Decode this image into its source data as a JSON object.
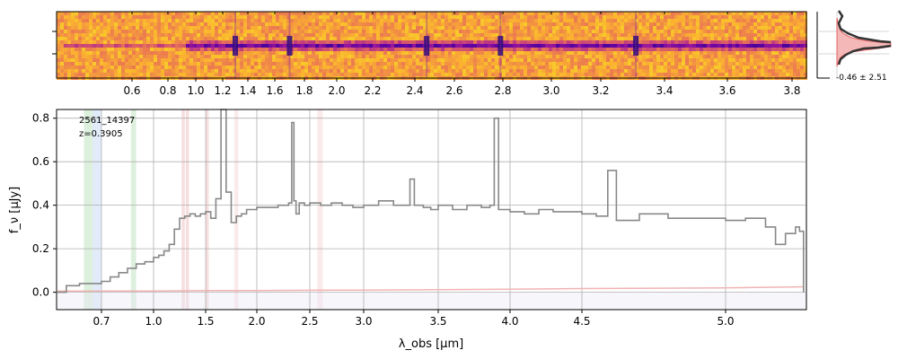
{
  "figure": {
    "label_object": "2561_14397",
    "label_redshift": "z=0.3905",
    "colors": {
      "spectrum": "#888888",
      "error": "#f2b3b3",
      "grid": "#b0b0b0",
      "colormap_low": "#0d0887",
      "colormap_high": "#f0f921"
    }
  },
  "chart_data": [
    {
      "type": "heatmap",
      "description_role": "2D spectrum",
      "x_axis_top_ticks_um": [
        "0.6",
        "0.8",
        "1.0",
        "1.2",
        "1.4",
        "1.6",
        "1.8",
        "2.0",
        "2.2",
        "2.4",
        "2.6",
        "2.8",
        "3.0",
        "3.2",
        "3.4",
        "3.6",
        "3.8"
      ],
      "colormap": "plasma",
      "trace_features_um": [
        1.3,
        1.7,
        2.46,
        2.79,
        3.31
      ]
    },
    {
      "type": "line",
      "description_role": "cross-dispersion profile",
      "annotation": "-0.46 ± 2.51",
      "grid": true
    },
    {
      "type": "line",
      "description_role": "1D spectrum",
      "xlabel": "λ_obs [μm]",
      "ylabel": "f_ν [μJy]",
      "xscale": "nonlinear (resolution-weighted)",
      "xlim": [
        0.6,
        5.4
      ],
      "ylim": [
        -0.08,
        0.84
      ],
      "grid": true,
      "x_ticks": [
        "0.7",
        "1.0",
        "1.5",
        "2.0",
        "2.5",
        "3.0",
        "3.5",
        "4.0",
        "4.5",
        "5.0"
      ],
      "y_ticks": [
        "0.0",
        "0.2",
        "0.4",
        "0.6",
        "0.8"
      ],
      "series": [
        {
          "name": "",
          "x": [
            0.6,
            0.62,
            0.65,
            0.7,
            0.75,
            0.8,
            0.85,
            0.9,
            0.95,
            1.0,
            1.05,
            1.1,
            1.15,
            1.2,
            1.25,
            1.3,
            1.35,
            1.4,
            1.45,
            1.5,
            1.55,
            1.6,
            1.65,
            1.7,
            1.75,
            1.8,
            1.85,
            1.9,
            2.0,
            2.1,
            2.2,
            2.3,
            2.33,
            2.35,
            2.37,
            2.4,
            2.45,
            2.5,
            2.6,
            2.7,
            2.8,
            2.9,
            3.0,
            3.1,
            3.2,
            3.28,
            3.31,
            3.34,
            3.4,
            3.45,
            3.5,
            3.6,
            3.7,
            3.8,
            3.86,
            3.89,
            3.92,
            4.0,
            4.1,
            4.2,
            4.3,
            4.4,
            4.5,
            4.55,
            4.59,
            4.62,
            4.7,
            4.8,
            4.9,
            5.0,
            5.1,
            5.2,
            5.25,
            5.3,
            5.35,
            5.37,
            5.39
          ],
          "y": [
            0.0,
            0.03,
            0.04,
            0.05,
            0.07,
            0.09,
            0.11,
            0.13,
            0.14,
            0.16,
            0.17,
            0.19,
            0.22,
            0.29,
            0.34,
            0.35,
            0.36,
            0.35,
            0.36,
            0.37,
            0.34,
            0.43,
            0.84,
            0.46,
            0.32,
            0.35,
            0.36,
            0.38,
            0.39,
            0.39,
            0.4,
            0.41,
            0.78,
            0.42,
            0.36,
            0.41,
            0.4,
            0.41,
            0.4,
            0.41,
            0.4,
            0.39,
            0.4,
            0.42,
            0.4,
            0.4,
            0.52,
            0.4,
            0.39,
            0.38,
            0.4,
            0.38,
            0.4,
            0.39,
            0.4,
            0.8,
            0.38,
            0.37,
            0.36,
            0.38,
            0.37,
            0.37,
            0.36,
            0.35,
            0.56,
            0.33,
            0.36,
            0.34,
            0.34,
            0.33,
            0.34,
            0.3,
            0.22,
            0.27,
            0.3,
            0.28,
            0.0
          ]
        },
        {
          "name": "",
          "x": [
            0.6,
            1.0,
            1.5,
            2.0,
            2.5,
            3.0,
            3.5,
            4.0,
            4.5,
            5.0,
            5.39
          ],
          "y": [
            0.005,
            0.006,
            0.008,
            0.008,
            0.009,
            0.01,
            0.012,
            0.014,
            0.017,
            0.02,
            0.025
          ]
        }
      ],
      "shaded_bands_um": [
        {
          "x0": 0.66,
          "x1": 0.68,
          "color": "#9fd49f"
        },
        {
          "x0": 0.68,
          "x1": 0.7,
          "color": "#a9c6ef"
        },
        {
          "x0": 0.87,
          "x1": 0.9,
          "color": "#9fd49f"
        },
        {
          "x0": 1.27,
          "x1": 1.3,
          "color": "#e9a0a0"
        },
        {
          "x0": 1.31,
          "x1": 1.34,
          "color": "#e9a0a0"
        },
        {
          "x0": 1.5,
          "x1": 1.53,
          "color": "#e9a0a0"
        },
        {
          "x0": 1.78,
          "x1": 1.82,
          "color": "#f2c2c6"
        },
        {
          "x0": 2.57,
          "x1": 2.62,
          "color": "#f2c2c6"
        }
      ]
    }
  ]
}
